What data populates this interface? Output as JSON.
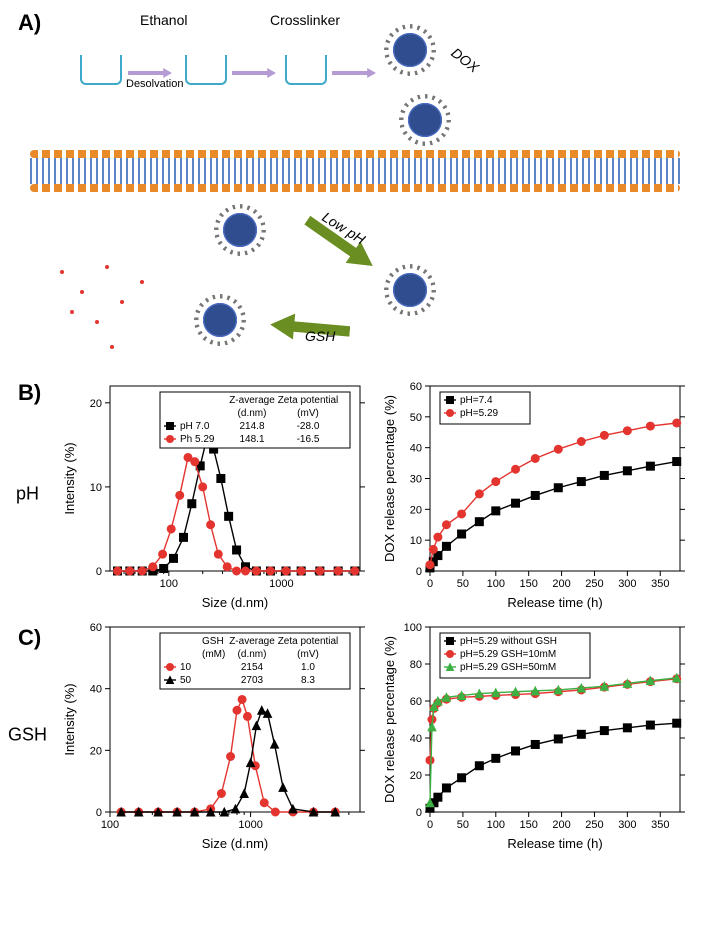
{
  "panelA": {
    "label": "A)",
    "texts": {
      "ethanol": "Ethanol",
      "crosslinker": "Crosslinker",
      "desolvation": "Desolvation",
      "dox": "DOX",
      "lowph": "Low pH",
      "gsh": "GSH"
    }
  },
  "panelB": {
    "label": "B)",
    "side_label": "pH",
    "dls": {
      "type": "line",
      "x_scale": "log",
      "x_label": "Size (d.nm)",
      "y_label": "Intensity (%)",
      "x_ticks": [
        100,
        1000
      ],
      "y_ticks": [
        0,
        10,
        20
      ],
      "ylim": [
        0,
        22
      ],
      "xlim": [
        30,
        5000
      ],
      "table_headers": [
        "",
        "Z-average (d.nm)",
        "Zeta potential (mV)"
      ],
      "series": [
        {
          "name": "pH 7.0",
          "marker": "square",
          "color": "#000000",
          "z_average": "214.8",
          "zeta": "-28.0",
          "points": [
            [
              35,
              0
            ],
            [
              45,
              0
            ],
            [
              58,
              0
            ],
            [
              72,
              0
            ],
            [
              90,
              0.3
            ],
            [
              110,
              1.5
            ],
            [
              135,
              4
            ],
            [
              160,
              8
            ],
            [
              190,
              12.5
            ],
            [
              215,
              15.5
            ],
            [
              250,
              14.5
            ],
            [
              290,
              11
            ],
            [
              340,
              6.5
            ],
            [
              400,
              2.5
            ],
            [
              480,
              0.5
            ],
            [
              600,
              0
            ],
            [
              800,
              0
            ],
            [
              1100,
              0
            ],
            [
              1500,
              0
            ],
            [
              2200,
              0
            ],
            [
              3200,
              0
            ],
            [
              4500,
              0
            ]
          ]
        },
        {
          "name": "Ph 5.29",
          "marker": "circle",
          "color": "#e3342f",
          "z_average": "148.1",
          "zeta": "-16.5",
          "points": [
            [
              35,
              0
            ],
            [
              45,
              0
            ],
            [
              58,
              0
            ],
            [
              72,
              0.5
            ],
            [
              88,
              2
            ],
            [
              105,
              5
            ],
            [
              125,
              9
            ],
            [
              148,
              13.5
            ],
            [
              170,
              13
            ],
            [
              200,
              10
            ],
            [
              235,
              5.5
            ],
            [
              275,
              2
            ],
            [
              330,
              0.5
            ],
            [
              400,
              0
            ],
            [
              480,
              0
            ],
            [
              600,
              0
            ],
            [
              800,
              0
            ],
            [
              1100,
              0
            ],
            [
              1500,
              0
            ],
            [
              2200,
              0
            ],
            [
              3200,
              0
            ],
            [
              4500,
              0
            ]
          ]
        }
      ]
    },
    "release": {
      "type": "line",
      "x_label": "Release time (h)",
      "y_label": "DOX release percentage (%)",
      "x_ticks": [
        0,
        50,
        100,
        150,
        200,
        250,
        300,
        350
      ],
      "y_ticks": [
        0,
        10,
        20,
        30,
        40,
        50,
        60
      ],
      "xlim": [
        0,
        380
      ],
      "ylim": [
        0,
        60
      ],
      "series": [
        {
          "name": "pH=7.4",
          "marker": "square",
          "color": "#000000",
          "points": [
            [
              0,
              1
            ],
            [
              5,
              3
            ],
            [
              12,
              5
            ],
            [
              25,
              8
            ],
            [
              48,
              12
            ],
            [
              75,
              16
            ],
            [
              100,
              19.5
            ],
            [
              130,
              22
            ],
            [
              160,
              24.5
            ],
            [
              195,
              27
            ],
            [
              230,
              29
            ],
            [
              265,
              31
            ],
            [
              300,
              32.5
            ],
            [
              335,
              34
            ],
            [
              375,
              35.5
            ]
          ]
        },
        {
          "name": "pH=5.29",
          "marker": "circle",
          "color": "#e3342f",
          "points": [
            [
              0,
              2
            ],
            [
              5,
              7
            ],
            [
              12,
              11
            ],
            [
              25,
              15
            ],
            [
              48,
              18.5
            ],
            [
              75,
              25
            ],
            [
              100,
              29
            ],
            [
              130,
              33
            ],
            [
              160,
              36.5
            ],
            [
              195,
              39.5
            ],
            [
              230,
              42
            ],
            [
              265,
              44
            ],
            [
              300,
              45.5
            ],
            [
              335,
              47
            ],
            [
              375,
              48
            ]
          ]
        }
      ]
    }
  },
  "panelC": {
    "label": "C)",
    "side_label": "GSH",
    "dls": {
      "type": "line",
      "x_scale": "log",
      "x_label": "Size (d.nm)",
      "y_label": "Intensity (%)",
      "x_ticks": [
        100,
        1000
      ],
      "y_ticks": [
        0,
        20,
        40,
        60
      ],
      "ylim": [
        0,
        60
      ],
      "xlim": [
        100,
        6000
      ],
      "table_headers": [
        "GSH (mM)",
        "Z-average (d.nm)",
        "Zeta potential (mV)"
      ],
      "series": [
        {
          "name": "10",
          "marker": "circle",
          "color": "#e3342f",
          "z_average": "2154",
          "zeta": "1.0",
          "points": [
            [
              120,
              0
            ],
            [
              160,
              0
            ],
            [
              220,
              0
            ],
            [
              300,
              0
            ],
            [
              400,
              0
            ],
            [
              520,
              1
            ],
            [
              620,
              6
            ],
            [
              720,
              18
            ],
            [
              800,
              33
            ],
            [
              870,
              36.5
            ],
            [
              950,
              31
            ],
            [
              1080,
              15
            ],
            [
              1250,
              3
            ],
            [
              1500,
              0
            ],
            [
              2000,
              0
            ],
            [
              2800,
              0
            ],
            [
              4000,
              0
            ]
          ]
        },
        {
          "name": "50",
          "marker": "triangle",
          "color": "#000000",
          "z_average": "2703",
          "zeta": "8.3",
          "points": [
            [
              120,
              0
            ],
            [
              160,
              0
            ],
            [
              220,
              0
            ],
            [
              300,
              0
            ],
            [
              400,
              0
            ],
            [
              520,
              0
            ],
            [
              650,
              0
            ],
            [
              780,
              1
            ],
            [
              900,
              6
            ],
            [
              1000,
              16
            ],
            [
              1100,
              28
            ],
            [
              1200,
              33
            ],
            [
              1320,
              32
            ],
            [
              1480,
              22
            ],
            [
              1700,
              8
            ],
            [
              2000,
              1
            ],
            [
              2800,
              0
            ],
            [
              4000,
              0
            ]
          ]
        }
      ]
    },
    "release": {
      "type": "line",
      "x_label": "Release time (h)",
      "y_label": "DOX release percentage (%)",
      "x_ticks": [
        0,
        50,
        100,
        150,
        200,
        250,
        300,
        350
      ],
      "y_ticks": [
        0,
        20,
        40,
        60,
        80,
        100
      ],
      "xlim": [
        0,
        380
      ],
      "ylim": [
        0,
        100
      ],
      "series": [
        {
          "name": "pH=5.29 without GSH",
          "marker": "square",
          "color": "#000000",
          "points": [
            [
              0,
              2
            ],
            [
              6,
              5
            ],
            [
              12,
              8
            ],
            [
              25,
              13
            ],
            [
              48,
              18.5
            ],
            [
              75,
              25
            ],
            [
              100,
              29
            ],
            [
              130,
              33
            ],
            [
              160,
              36.5
            ],
            [
              195,
              39.5
            ],
            [
              230,
              42
            ],
            [
              265,
              44
            ],
            [
              300,
              45.5
            ],
            [
              335,
              47
            ],
            [
              375,
              48
            ]
          ]
        },
        {
          "name": "pH=5.29 GSH=10mM",
          "marker": "circle",
          "color": "#e3342f",
          "points": [
            [
              0,
              28
            ],
            [
              3,
              50
            ],
            [
              6,
              56
            ],
            [
              12,
              59
            ],
            [
              25,
              61
            ],
            [
              48,
              62
            ],
            [
              75,
              62.5
            ],
            [
              100,
              63
            ],
            [
              130,
              63.5
            ],
            [
              160,
              64
            ],
            [
              195,
              65
            ],
            [
              230,
              66
            ],
            [
              265,
              67.5
            ],
            [
              300,
              69
            ],
            [
              335,
              70.5
            ],
            [
              375,
              72
            ]
          ]
        },
        {
          "name": "pH=5.29 GSH=50mM",
          "marker": "triangle",
          "color": "#3cb043",
          "points": [
            [
              0,
              5
            ],
            [
              3,
              46
            ],
            [
              6,
              57
            ],
            [
              12,
              60
            ],
            [
              25,
              62
            ],
            [
              48,
              63
            ],
            [
              75,
              64
            ],
            [
              100,
              64.5
            ],
            [
              130,
              65
            ],
            [
              160,
              65.5
            ],
            [
              195,
              66
            ],
            [
              230,
              67
            ],
            [
              265,
              68
            ],
            [
              300,
              69.5
            ],
            [
              335,
              71
            ],
            [
              375,
              72.5
            ]
          ]
        }
      ]
    }
  },
  "chart_style": {
    "bg": "#ffffff",
    "axis_color": "#000000",
    "font": "Arial",
    "marker_size": 4,
    "line_width": 1.4
  }
}
